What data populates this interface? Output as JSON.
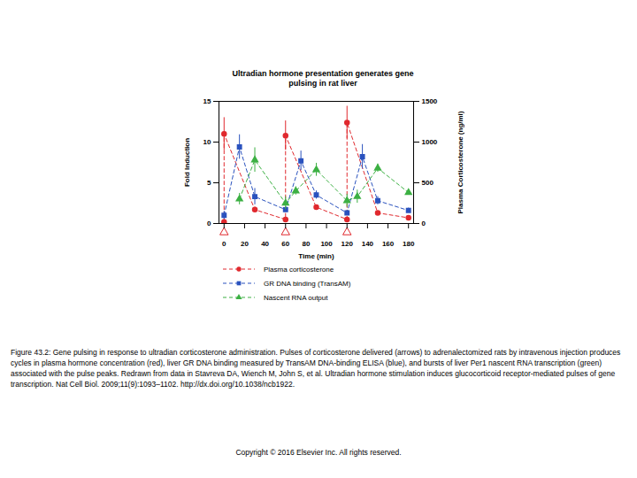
{
  "chart_data": {
    "type": "line",
    "title": "Ultradian hormone presentation generates gene pulsing in rat liver",
    "x_label": "Time (min)",
    "y_label": "Fold Induction",
    "y2_label": "Plasma Corticosterone (ng/ml)",
    "xlim": [
      -5,
      185
    ],
    "xticks": [
      0,
      20,
      40,
      60,
      80,
      100,
      120,
      140,
      160,
      180
    ],
    "ylim": [
      0,
      15
    ],
    "yticks": [
      0,
      5,
      10,
      15
    ],
    "y2lim": [
      0,
      1500
    ],
    "y2ticks": [
      0,
      500,
      1000,
      1500
    ],
    "legend": "bottom",
    "pulse_times": [
      0,
      60,
      120
    ],
    "series": [
      {
        "name": "Plasma corticosterone",
        "color": "#e0292e",
        "marker": "circle",
        "line_style": "dashed",
        "axis": "y2",
        "x": [
          0,
          0,
          30,
          60,
          60,
          90,
          120,
          120,
          150,
          180
        ],
        "values": [
          20,
          1100,
          170,
          50,
          1080,
          200,
          50,
          1240,
          130,
          70
        ],
        "errors": [
          0,
          200,
          30,
          0,
          180,
          20,
          0,
          200,
          20,
          0
        ]
      },
      {
        "name": "GR DNA binding (TransAM)",
        "color": "#2a52be",
        "marker": "square",
        "line_style": "dashed",
        "x": [
          0,
          15,
          30,
          60,
          75,
          90,
          120,
          135,
          150,
          180
        ],
        "values": [
          1.0,
          9.4,
          3.3,
          1.7,
          7.7,
          3.5,
          1.3,
          8.2,
          2.8,
          1.6
        ],
        "errors": [
          0.5,
          1.5,
          1.0,
          0.3,
          1.2,
          0.5,
          0.3,
          1.5,
          0.5,
          0.3
        ]
      },
      {
        "name": "Nascent RNA output",
        "color": "#3cb043",
        "marker": "triangle",
        "line_style": "dashed",
        "x": [
          15,
          30,
          60,
          70,
          90,
          120,
          130,
          150,
          180
        ],
        "values": [
          3.0,
          7.8,
          2.5,
          4.0,
          6.6,
          2.8,
          3.3,
          6.8,
          3.8
        ],
        "errors": [
          0.7,
          1.5,
          0.8,
          0.5,
          0.8,
          0.8,
          0.8,
          0.5,
          0
        ]
      }
    ],
    "caption": "Figure 43.2: Gene pulsing in response to ultradian corticosterone administration. Pulses of corticosterone delivered (arrows) to adrenalectomized rats by intravenous injection produces cycles in plasma hormone concentration (red), liver GR DNA binding measured by TransAM DNA-binding ELISA (blue), and bursts of liver Per1 nascent RNA transcription (green) associated with the pulse peaks. Redrawn from data in Stavreva DA, Wiench M, John S, et al. Ultradian hormone stimulation induces glucocorticoid receptor-mediated pulses of gene transcription. Nat Cell Biol. 2009;11(9):1093–1102. http://dx.doi.org/10.1038/ncb1922.",
    "copyright": "Copyright © 2016 Elsevier Inc. All rights reserved."
  }
}
